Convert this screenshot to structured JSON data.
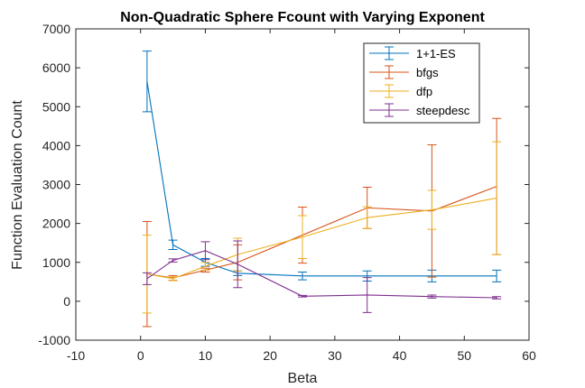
{
  "chart_data": {
    "type": "line",
    "title": "Non-Quadratic Sphere Fcount with Varying Exponent",
    "xlabel": "Beta",
    "ylabel": "Function Evaluation Count",
    "xlim": [
      -10,
      60
    ],
    "ylim": [
      -1000,
      7000
    ],
    "xticks": [
      "-10",
      "0",
      "10",
      "20",
      "30",
      "40",
      "50",
      "60"
    ],
    "yticks": [
      "-1000",
      "0",
      "1000",
      "2000",
      "3000",
      "4000",
      "5000",
      "6000",
      "7000"
    ],
    "grid": false,
    "legend_position": "top-right",
    "series": [
      {
        "name": "1+1-ES",
        "color": "#0072BD",
        "x": [
          1,
          5,
          10,
          15,
          25,
          35,
          45,
          55
        ],
        "y": [
          5650,
          1450,
          1000,
          720,
          650,
          650,
          650,
          650
        ],
        "err": [
          780,
          120,
          100,
          60,
          100,
          130,
          150,
          150
        ]
      },
      {
        "name": "bfgs",
        "color": "#D95319",
        "x": [
          1,
          5,
          10,
          15,
          25,
          35,
          45,
          55
        ],
        "y": [
          700,
          600,
          800,
          1000,
          1700,
          2400,
          2320,
          2950
        ],
        "err": [
          1350,
          60,
          50,
          450,
          720,
          530,
          1700,
          1750
        ]
      },
      {
        "name": "dfp",
        "color": "#EDB120",
        "x": [
          1,
          5,
          10,
          15,
          25,
          35,
          45,
          55
        ],
        "y": [
          700,
          580,
          900,
          1200,
          1650,
          2150,
          2350,
          2650
        ],
        "err": [
          1000,
          50,
          100,
          420,
          550,
          280,
          500,
          1450
        ]
      },
      {
        "name": "steepdesc",
        "color": "#7E2F8E",
        "x": [
          1,
          5,
          10,
          15,
          25,
          35,
          45,
          55
        ],
        "y": [
          580,
          1050,
          1300,
          950,
          130,
          160,
          120,
          90
        ],
        "err": [
          150,
          40,
          230,
          600,
          20,
          450,
          40,
          30
        ]
      }
    ]
  }
}
